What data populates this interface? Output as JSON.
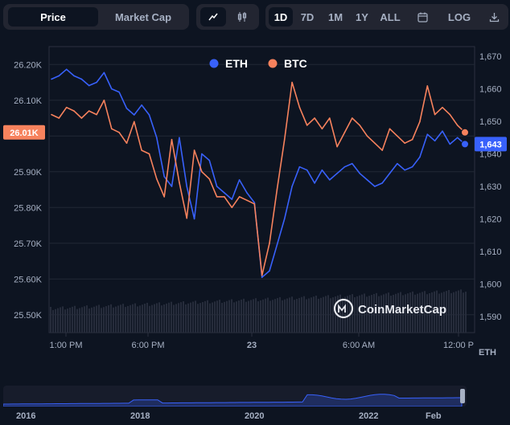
{
  "toolbar": {
    "metric_tabs": [
      "Price",
      "Market Cap"
    ],
    "range_tabs": [
      "1D",
      "7D",
      "1M",
      "1Y",
      "ALL"
    ],
    "log_label": "LOG",
    "icons": [
      "line-chart-icon",
      "candlestick-icon",
      "calendar-icon",
      "download-icon"
    ]
  },
  "watermark": "CoinMarketCap",
  "colors": {
    "eth": "#3861fb",
    "btc": "#f7825d",
    "background": "#0d1421"
  },
  "navigator": {
    "ticks": [
      "2016",
      "2018",
      "2020",
      "2022",
      "Feb"
    ]
  },
  "chart_data": {
    "type": "line",
    "legend": [
      "ETH",
      "BTC"
    ],
    "legend_position": "top-center",
    "x_ticks": [
      "1:00 PM",
      "6:00 PM",
      "23",
      "6:00 AM",
      "12:00 P"
    ],
    "left_axis": {
      "ticks": [
        "25.50K",
        "25.60K",
        "25.70K",
        "25.80K",
        "25.90K",
        "26.00K",
        "26.10K",
        "26.20K"
      ],
      "range": [
        25450,
        26250
      ]
    },
    "right_axis": {
      "ticks": [
        "1,590",
        "1,600",
        "1,610",
        "1,620",
        "1,630",
        "1,640",
        "1,650",
        "1,660",
        "1,670"
      ],
      "range": [
        1585,
        1673
      ],
      "unit": "ETH"
    },
    "current_btc_label": "26.01K",
    "current_eth_label": "1,643",
    "x": [
      0,
      1,
      2,
      3,
      4,
      5,
      6,
      7,
      8,
      9,
      10,
      11,
      12,
      13,
      14,
      15,
      16,
      17,
      18,
      19,
      20,
      21,
      22,
      23,
      24,
      25,
      26,
      27,
      28,
      29,
      30,
      31,
      32,
      33,
      34,
      35,
      36,
      37,
      38,
      39,
      40,
      41,
      42,
      43,
      44,
      45,
      46,
      47,
      48,
      49,
      50,
      51,
      52,
      53,
      54,
      55
    ],
    "series": [
      {
        "name": "ETH",
        "axis": "right",
        "values": [
          1663,
          1664,
          1666,
          1664,
          1663,
          1661,
          1662,
          1665,
          1660,
          1659,
          1654,
          1652,
          1655,
          1652,
          1645,
          1633,
          1630,
          1645,
          1630,
          1620,
          1640,
          1638,
          1630,
          1628,
          1626,
          1632,
          1628,
          1625,
          1602,
          1604,
          1612,
          1620,
          1630,
          1636,
          1635,
          1631,
          1635,
          1632,
          1634,
          1636,
          1637,
          1634,
          1632,
          1630,
          1631,
          1634,
          1637,
          1635,
          1636,
          1639,
          1646,
          1644,
          1647,
          1643,
          1645,
          1643
        ]
      },
      {
        "name": "BTC",
        "axis": "left",
        "values": [
          26060,
          26050,
          26080,
          26070,
          26050,
          26070,
          26060,
          26100,
          26020,
          26010,
          25980,
          26040,
          25960,
          25950,
          25880,
          25830,
          25990,
          25870,
          25770,
          25960,
          25900,
          25880,
          25830,
          25830,
          25800,
          25830,
          25820,
          25810,
          25610,
          25700,
          25850,
          25990,
          26150,
          26080,
          26030,
          26050,
          26020,
          26050,
          25970,
          26010,
          26050,
          26030,
          26000,
          25980,
          25960,
          26020,
          26000,
          25980,
          25990,
          26040,
          26140,
          26060,
          26080,
          26060,
          26030,
          26010
        ]
      }
    ]
  }
}
